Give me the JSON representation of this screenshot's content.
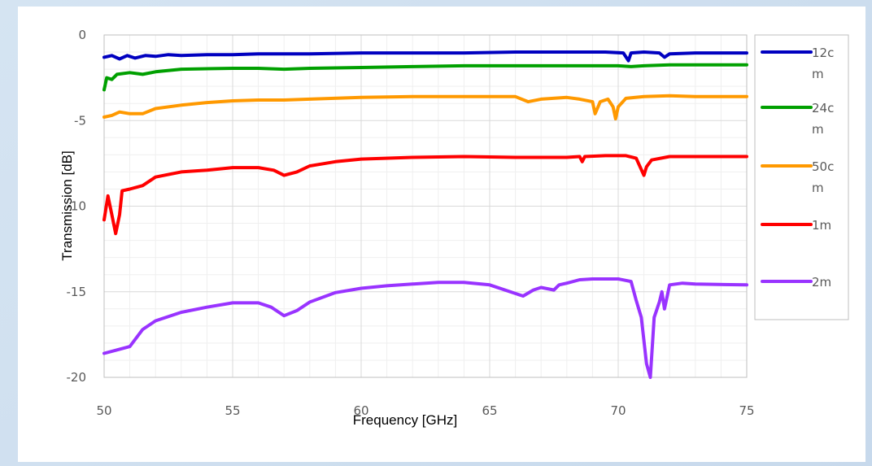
{
  "chart_data": {
    "type": "line",
    "title": "",
    "xlabel": "Frequency  [GHz]",
    "ylabel": "Transmission   [dB]",
    "xlim": [
      50,
      75
    ],
    "ylim": [
      -20,
      0
    ],
    "x_ticks": [
      "50",
      "55",
      "60",
      "65",
      "70",
      "75"
    ],
    "y_ticks": [
      "0",
      "-5",
      "-10",
      "-15",
      "-20"
    ],
    "grid": true,
    "legend_position": "right",
    "series": [
      {
        "name": "12cm",
        "legend_lines": [
          "12c",
          "m"
        ],
        "color": "#0000c0",
        "points": [
          [
            50,
            -1.3
          ],
          [
            50.3,
            -1.2
          ],
          [
            50.6,
            -1.4
          ],
          [
            50.9,
            -1.2
          ],
          [
            51.2,
            -1.35
          ],
          [
            51.6,
            -1.2
          ],
          [
            52,
            -1.25
          ],
          [
            52.5,
            -1.15
          ],
          [
            53,
            -1.2
          ],
          [
            54,
            -1.15
          ],
          [
            55,
            -1.15
          ],
          [
            56,
            -1.1
          ],
          [
            57,
            -1.1
          ],
          [
            58,
            -1.1
          ],
          [
            60,
            -1.05
          ],
          [
            62,
            -1.05
          ],
          [
            64,
            -1.05
          ],
          [
            66,
            -1.0
          ],
          [
            68,
            -1.0
          ],
          [
            69.5,
            -1.0
          ],
          [
            70.2,
            -1.05
          ],
          [
            70.4,
            -1.5
          ],
          [
            70.5,
            -1.05
          ],
          [
            71,
            -1.0
          ],
          [
            71.6,
            -1.05
          ],
          [
            71.8,
            -1.3
          ],
          [
            72,
            -1.1
          ],
          [
            73,
            -1.05
          ],
          [
            75,
            -1.05
          ]
        ]
      },
      {
        "name": "24cm",
        "legend_lines": [
          "24c",
          "m"
        ],
        "color": "#00a000",
        "points": [
          [
            50,
            -3.2
          ],
          [
            50.1,
            -2.5
          ],
          [
            50.3,
            -2.6
          ],
          [
            50.5,
            -2.3
          ],
          [
            51,
            -2.2
          ],
          [
            51.5,
            -2.3
          ],
          [
            52,
            -2.15
          ],
          [
            53,
            -2.0
          ],
          [
            55,
            -1.95
          ],
          [
            56,
            -1.95
          ],
          [
            57,
            -2.0
          ],
          [
            58,
            -1.95
          ],
          [
            60,
            -1.9
          ],
          [
            62,
            -1.85
          ],
          [
            64,
            -1.8
          ],
          [
            66,
            -1.8
          ],
          [
            68,
            -1.8
          ],
          [
            70,
            -1.8
          ],
          [
            70.5,
            -1.85
          ],
          [
            71,
            -1.8
          ],
          [
            72,
            -1.75
          ],
          [
            75,
            -1.75
          ]
        ]
      },
      {
        "name": "50cm",
        "legend_lines": [
          "50c",
          "m"
        ],
        "color": "#ff9900",
        "points": [
          [
            50,
            -4.8
          ],
          [
            50.3,
            -4.7
          ],
          [
            50.6,
            -4.5
          ],
          [
            51,
            -4.6
          ],
          [
            51.5,
            -4.6
          ],
          [
            52,
            -4.3
          ],
          [
            53,
            -4.1
          ],
          [
            54,
            -3.95
          ],
          [
            55,
            -3.85
          ],
          [
            56,
            -3.8
          ],
          [
            57,
            -3.8
          ],
          [
            58,
            -3.75
          ],
          [
            60,
            -3.65
          ],
          [
            62,
            -3.6
          ],
          [
            64,
            -3.6
          ],
          [
            66,
            -3.6
          ],
          [
            66.5,
            -3.9
          ],
          [
            67,
            -3.75
          ],
          [
            68,
            -3.65
          ],
          [
            68.5,
            -3.75
          ],
          [
            69,
            -3.9
          ],
          [
            69.1,
            -4.6
          ],
          [
            69.3,
            -3.9
          ],
          [
            69.6,
            -3.75
          ],
          [
            69.8,
            -4.2
          ],
          [
            69.9,
            -4.9
          ],
          [
            70,
            -4.2
          ],
          [
            70.3,
            -3.7
          ],
          [
            71,
            -3.6
          ],
          [
            72,
            -3.55
          ],
          [
            73,
            -3.6
          ],
          [
            75,
            -3.6
          ]
        ]
      },
      {
        "name": "1m",
        "legend_lines": [
          "1m"
        ],
        "color": "#ff0000",
        "points": [
          [
            50,
            -10.8
          ],
          [
            50.15,
            -9.4
          ],
          [
            50.3,
            -10.5
          ],
          [
            50.45,
            -11.6
          ],
          [
            50.6,
            -10.5
          ],
          [
            50.7,
            -9.1
          ],
          [
            51,
            -9.0
          ],
          [
            51.5,
            -8.8
          ],
          [
            52,
            -8.3
          ],
          [
            53,
            -8.0
          ],
          [
            54,
            -7.9
          ],
          [
            55,
            -7.75
          ],
          [
            56,
            -7.75
          ],
          [
            56.6,
            -7.9
          ],
          [
            57,
            -8.2
          ],
          [
            57.5,
            -8.0
          ],
          [
            58,
            -7.65
          ],
          [
            59,
            -7.4
          ],
          [
            60,
            -7.25
          ],
          [
            62,
            -7.15
          ],
          [
            64,
            -7.1
          ],
          [
            66,
            -7.15
          ],
          [
            68,
            -7.15
          ],
          [
            68.5,
            -7.1
          ],
          [
            68.6,
            -7.4
          ],
          [
            68.7,
            -7.1
          ],
          [
            69.5,
            -7.05
          ],
          [
            70.3,
            -7.05
          ],
          [
            70.7,
            -7.2
          ],
          [
            71,
            -8.2
          ],
          [
            71.1,
            -7.7
          ],
          [
            71.3,
            -7.3
          ],
          [
            72,
            -7.1
          ],
          [
            75,
            -7.1
          ]
        ]
      },
      {
        "name": "2m",
        "legend_lines": [
          "2m"
        ],
        "color": "#9933ff",
        "points": [
          [
            50,
            -18.6
          ],
          [
            50.5,
            -18.4
          ],
          [
            51,
            -18.2
          ],
          [
            51.5,
            -17.2
          ],
          [
            52,
            -16.7
          ],
          [
            53,
            -16.2
          ],
          [
            54,
            -15.9
          ],
          [
            55,
            -15.65
          ],
          [
            56,
            -15.65
          ],
          [
            56.5,
            -15.9
          ],
          [
            57,
            -16.4
          ],
          [
            57.5,
            -16.1
          ],
          [
            58,
            -15.6
          ],
          [
            59,
            -15.05
          ],
          [
            60,
            -14.8
          ],
          [
            61,
            -14.65
          ],
          [
            62,
            -14.55
          ],
          [
            63,
            -14.45
          ],
          [
            64,
            -14.45
          ],
          [
            65,
            -14.6
          ],
          [
            66,
            -15.1
          ],
          [
            66.3,
            -15.25
          ],
          [
            66.7,
            -14.9
          ],
          [
            67,
            -14.75
          ],
          [
            67.5,
            -14.9
          ],
          [
            67.7,
            -14.6
          ],
          [
            68,
            -14.5
          ],
          [
            68.5,
            -14.3
          ],
          [
            69,
            -14.25
          ],
          [
            70,
            -14.25
          ],
          [
            70.5,
            -14.4
          ],
          [
            70.7,
            -15.5
          ],
          [
            70.9,
            -16.5
          ],
          [
            71.1,
            -19.2
          ],
          [
            71.25,
            -20.0
          ],
          [
            71.4,
            -16.5
          ],
          [
            71.6,
            -15.6
          ],
          [
            71.7,
            -15.0
          ],
          [
            71.8,
            -16.0
          ],
          [
            72,
            -14.6
          ],
          [
            72.5,
            -14.5
          ],
          [
            73,
            -14.55
          ],
          [
            75,
            -14.6
          ]
        ]
      }
    ]
  }
}
